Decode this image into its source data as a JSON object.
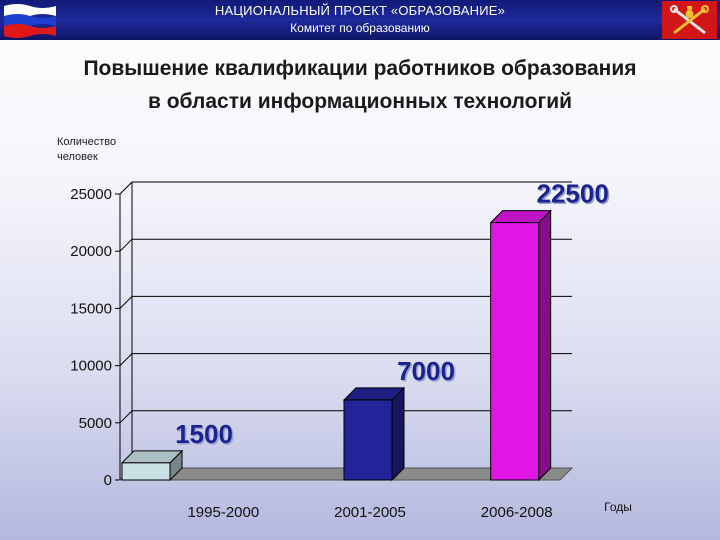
{
  "header": {
    "line1": "НАЦИОНАЛЬНЫЙ ПРОЕКТ «ОБРАЗОВАНИЕ»",
    "line2": "Комитет по образованию"
  },
  "icons": {
    "left": "russian-flag-icon",
    "right": "city-emblem-icon"
  },
  "colors": {
    "header_bg": "#1a2590",
    "bar_colors": [
      "#c9e0e4",
      "#24249a",
      "#e016e6"
    ],
    "data_label": "#1a2390"
  },
  "chart_data": {
    "type": "bar",
    "title": "Повышение квалификации работников образования в области информационных технологий",
    "title_lines": [
      "Повышение квалификации работников образования",
      "в области информационных технологий"
    ],
    "ylabel_lines": [
      "Количество",
      "человек"
    ],
    "xlabel": "Годы",
    "categories": [
      "1995-2000",
      "2001-2005",
      "2006-2008"
    ],
    "values": [
      1500,
      7000,
      22500
    ],
    "ylim": [
      0,
      25000
    ],
    "yticks": [
      "0",
      "5000",
      "10000",
      "15000",
      "20000",
      "25000"
    ],
    "grid": true,
    "legend": "none"
  }
}
